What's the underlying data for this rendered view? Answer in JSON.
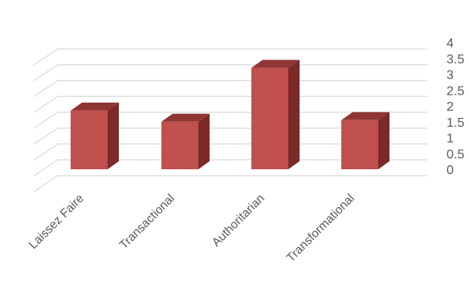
{
  "chart_data": {
    "type": "bar",
    "style": "3d-column",
    "categories": [
      "Laissez Faire",
      "Transactional",
      "Authoritarian",
      "Transformational"
    ],
    "values": [
      1.85,
      1.5,
      3.2,
      1.55
    ],
    "ylim": [
      0,
      4
    ],
    "yticks": [
      "0",
      "0.5",
      "1",
      "1.5",
      "2",
      "2.5",
      "3",
      "3.5",
      "4"
    ],
    "axis_position": "right",
    "grid": true,
    "legend": "none",
    "bar_color": "#c0504d",
    "bar_side_color": "#7b2a28",
    "bar_top_color": "#8f3634"
  }
}
